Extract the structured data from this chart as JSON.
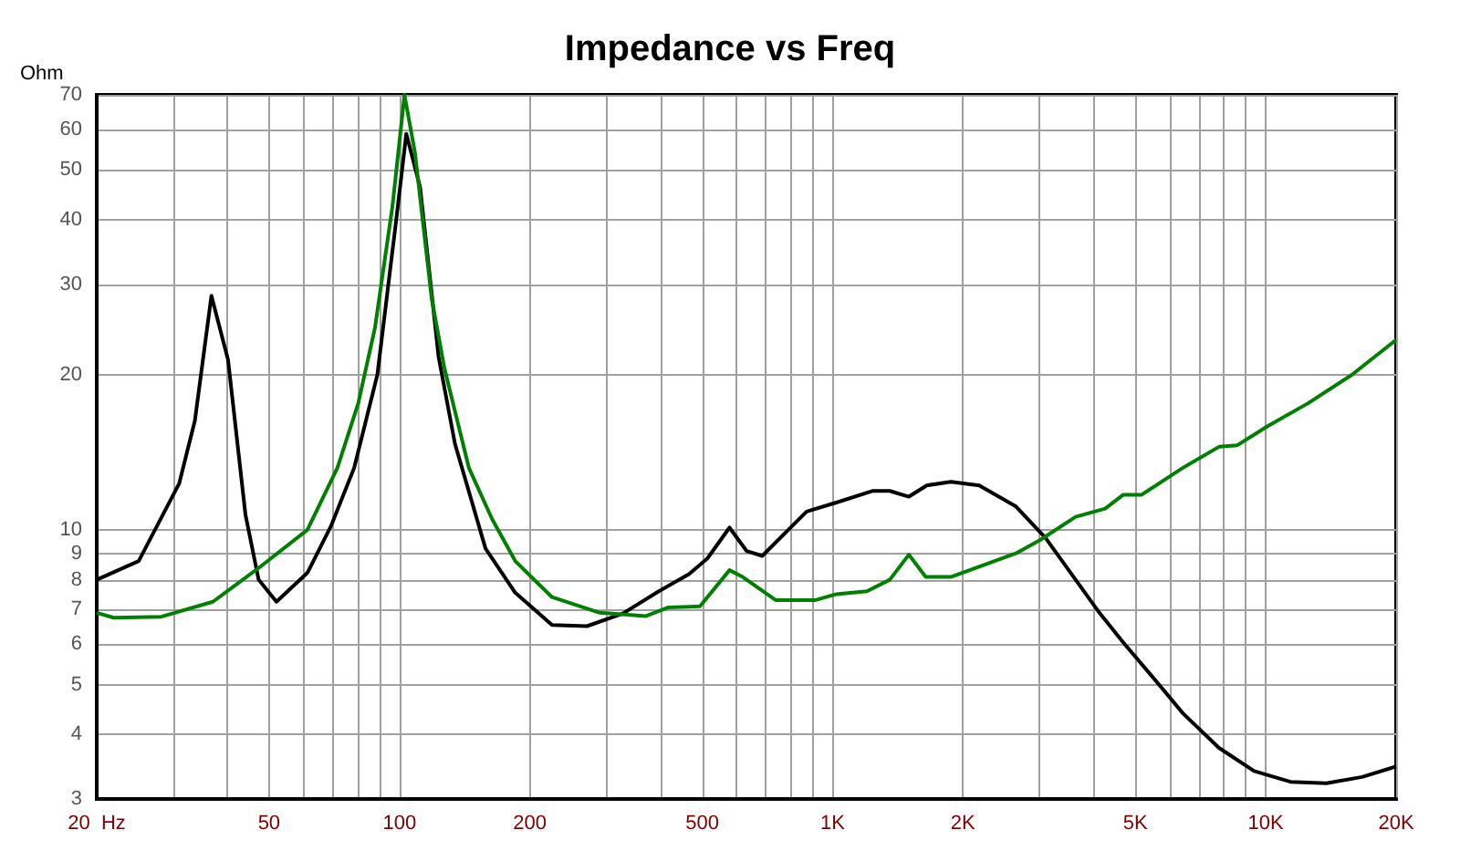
{
  "chart_data": {
    "type": "line",
    "title": "Impedance vs Freq",
    "ylabel": "Ohm",
    "log": "xy",
    "grid": true,
    "marker": "none",
    "line_style": "solid",
    "xlim": [
      20,
      20000
    ],
    "ylim": [
      3,
      70
    ],
    "xticks": [
      {
        "value": 20,
        "label": "20  Hz"
      },
      {
        "value": 30,
        "label": null
      },
      {
        "value": 40,
        "label": null
      },
      50,
      {
        "value": 60,
        "label": null
      },
      {
        "value": 70,
        "label": null
      },
      {
        "value": 80,
        "label": null
      },
      {
        "value": 90,
        "label": null
      },
      100,
      200,
      {
        "value": 300,
        "label": null
      },
      {
        "value": 400,
        "label": null
      },
      500,
      {
        "value": 600,
        "label": null
      },
      {
        "value": 700,
        "label": null
      },
      {
        "value": 800,
        "label": null
      },
      {
        "value": 900,
        "label": null
      },
      {
        "value": 1000,
        "label": "1K"
      },
      {
        "value": 2000,
        "label": "2K"
      },
      {
        "value": 3000,
        "label": null
      },
      {
        "value": 4000,
        "label": null
      },
      {
        "value": 5000,
        "label": "5K"
      },
      {
        "value": 6000,
        "label": null
      },
      {
        "value": 7000,
        "label": null
      },
      {
        "value": 8000,
        "label": null
      },
      {
        "value": 9000,
        "label": null
      },
      {
        "value": 10000,
        "label": "10K"
      },
      {
        "value": 20000,
        "label": "20K"
      }
    ],
    "yticks": [
      3,
      4,
      5,
      6,
      7,
      8,
      9,
      10,
      20,
      30,
      40,
      50,
      60,
      70
    ],
    "series": [
      {
        "color": "#000000",
        "x": [
          20,
          25,
          31,
          33.7,
          36.8,
          40.2,
          44.1,
          47.3,
          52,
          61.3,
          69.6,
          78.6,
          88.9,
          98.5,
          103.7,
          111.6,
          123.1,
          134.3,
          158,
          185,
          225,
          271,
          328,
          397,
          466,
          514,
          578,
          633,
          688,
          871,
          1020,
          1235,
          1355,
          1500,
          1650,
          1875,
          2180,
          2650,
          3100,
          3640,
          4130,
          4690,
          5500,
          6440,
          7800,
          9400,
          11400,
          13800,
          16700,
          20000
        ],
        "values": [
          8,
          8.7,
          12.3,
          16.3,
          28.5,
          21.4,
          10.7,
          8,
          7.25,
          8.25,
          10.2,
          13.2,
          20,
          40.6,
          58.8,
          46.3,
          21.7,
          14.7,
          9.2,
          7.55,
          6.53,
          6.5,
          6.88,
          7.6,
          8.2,
          8.8,
          10.1,
          9.1,
          8.9,
          10.85,
          11.3,
          11.9,
          11.9,
          11.6,
          12.2,
          12.4,
          12.2,
          11.1,
          9.65,
          8,
          6.9,
          6.04,
          5.16,
          4.4,
          3.77,
          3.4,
          3.24,
          3.22,
          3.31,
          3.47
        ]
      },
      {
        "color": "#008000",
        "x": [
          20,
          21.9,
          28.2,
          37.1,
          47.9,
          61.3,
          71.9,
          80.3,
          87.8,
          96.4,
          102.7,
          108.6,
          118.7,
          127,
          144.6,
          163.6,
          185,
          225,
          290,
          371,
          418,
          494,
          578,
          620,
          740,
          910,
          1020,
          1200,
          1355,
          1500,
          1640,
          1875,
          2650,
          3010,
          3640,
          4260,
          4690,
          5170,
          6440,
          7800,
          8600,
          10100,
          12500,
          15800,
          20000
        ],
        "values": [
          6.9,
          6.75,
          6.78,
          7.25,
          8.5,
          10,
          13.2,
          17.6,
          24.7,
          42.7,
          70,
          54,
          28.1,
          20.6,
          13.2,
          10.5,
          8.7,
          7.4,
          6.9,
          6.8,
          7.07,
          7.1,
          8.35,
          8.1,
          7.3,
          7.3,
          7.5,
          7.6,
          8,
          8.95,
          8.1,
          8.1,
          9,
          9.55,
          10.6,
          11,
          11.7,
          11.7,
          13.2,
          14.5,
          14.6,
          15.9,
          17.6,
          20,
          23.4
        ]
      }
    ]
  }
}
